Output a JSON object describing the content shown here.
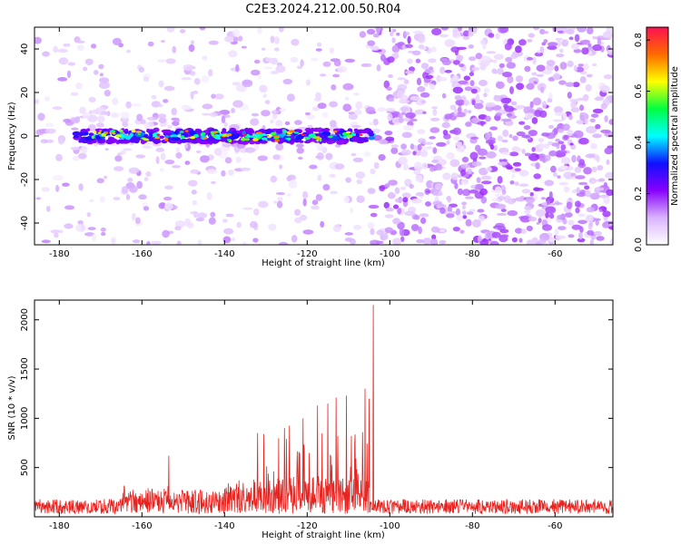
{
  "title": "C2E3.2024.212.00.50.R04",
  "chart_data": [
    {
      "type": "heatmap",
      "xlabel": "Height of straight line (km)",
      "ylabel": "Frequency (Hz)",
      "xlim": [
        -186,
        -46
      ],
      "ylim": [
        -50,
        50
      ],
      "xticks": [
        -180,
        -160,
        -140,
        -120,
        -100,
        -80,
        -60
      ],
      "yticks": [
        -40,
        -20,
        0,
        20,
        40
      ],
      "colorbar": {
        "label": "Normalized spectral amplitude",
        "range": [
          0,
          0.85
        ],
        "ticks": [
          0.0,
          0.2,
          0.4,
          0.6,
          0.8
        ],
        "colors": [
          "#ffffff",
          "#d9b3ff",
          "#8800ff",
          "#1010ff",
          "#00ffff",
          "#00ff40",
          "#ffff00",
          "#ff6a00",
          "#ff1050"
        ]
      },
      "regions": [
        {
          "x": [
            -186,
            -105
          ],
          "description": "sparse background noise"
        },
        {
          "x": [
            -105,
            -46
          ],
          "description": "dense background noise"
        }
      ],
      "band": {
        "x": [
          -176,
          -104
        ],
        "center_hz": 0,
        "halfwidth_hz": 3,
        "peak_amplitude": 0.85
      },
      "grid": false
    },
    {
      "type": "line",
      "xlabel": "Height of straight line (km)",
      "ylabel": "SNR (10 * v/v)",
      "xlim": [
        -186,
        -46
      ],
      "ylim": [
        0,
        2200
      ],
      "xticks": [
        -180,
        -160,
        -140,
        -120,
        -100,
        -80,
        -60
      ],
      "yticks": [
        500,
        1000,
        1500,
        2000
      ],
      "color": "#e8231f",
      "segments": [
        {
          "x": [
            -186,
            -165
          ],
          "baseline": 150,
          "spread": 130
        },
        {
          "x": [
            -165,
            -140
          ],
          "baseline": 250,
          "spread": 300
        },
        {
          "x": [
            -140,
            -133
          ],
          "baseline": 280,
          "spread": 350
        },
        {
          "x": [
            -133,
            -128
          ],
          "baseline": 350,
          "spread": 500
        },
        {
          "x": [
            -128,
            -105
          ],
          "baseline": 400,
          "spread": 900
        },
        {
          "x": [
            -105,
            -46
          ],
          "baseline": 150,
          "spread": 110
        }
      ],
      "spikes": [
        {
          "x": -153.5,
          "y": 620
        },
        {
          "x": -132,
          "y": 850
        },
        {
          "x": -130.5,
          "y": 840
        },
        {
          "x": -121,
          "y": 1000
        },
        {
          "x": -117.5,
          "y": 1130
        },
        {
          "x": -115,
          "y": 1150
        },
        {
          "x": -113,
          "y": 1210
        },
        {
          "x": -110.5,
          "y": 1230
        },
        {
          "x": -106,
          "y": 1300
        },
        {
          "x": -105,
          "y": 1200
        },
        {
          "x": -104,
          "y": 2150
        }
      ],
      "grid": false
    }
  ]
}
